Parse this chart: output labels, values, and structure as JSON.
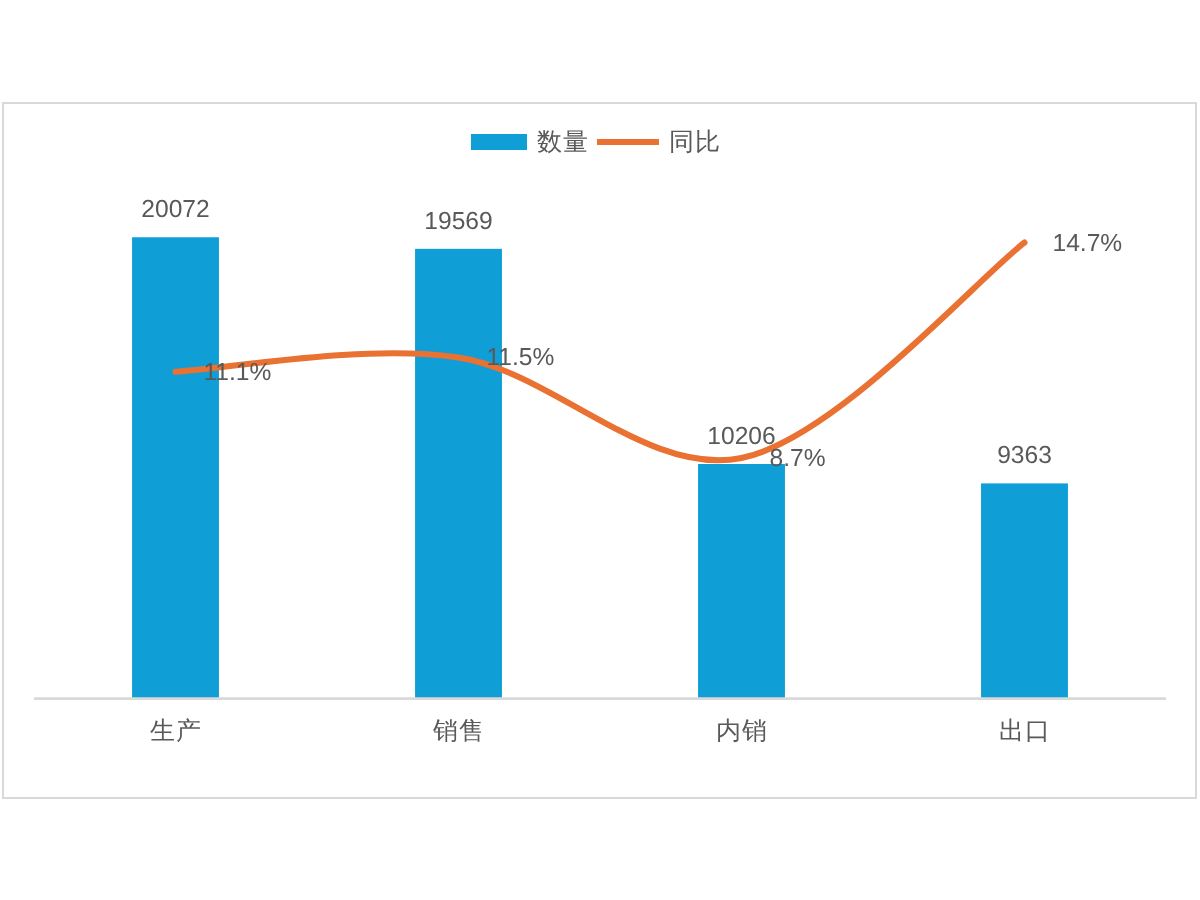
{
  "chart_data": {
    "type": "bar",
    "categories": [
      "生产",
      "销售",
      "内销",
      "出口"
    ],
    "series": [
      {
        "name": "数量",
        "color": "#0f9ed5",
        "values": [
          20072,
          19569,
          10206,
          9363
        ]
      },
      {
        "name": "同比",
        "type": "line",
        "axis": "y2",
        "color": "#e97132",
        "values": [
          11.1,
          11.5,
          8.7,
          14.7
        ],
        "value_labels": [
          "11.1%",
          "11.5%",
          "8.7%",
          "14.7%"
        ]
      }
    ],
    "data_labels": true,
    "legend": "top",
    "tick_labels": "x"
  }
}
